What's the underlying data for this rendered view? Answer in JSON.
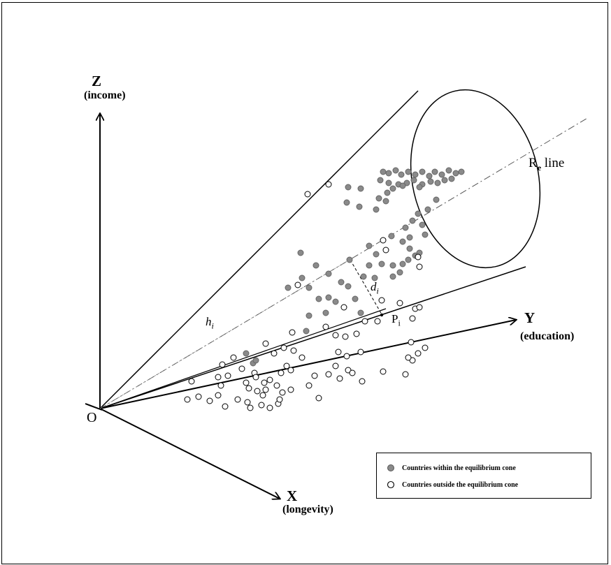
{
  "axes": {
    "z": {
      "letter": "Z",
      "label": "(income)"
    },
    "y": {
      "letter": "Y",
      "label": "(education)"
    },
    "x": {
      "letter": "X",
      "label": "(longevity)"
    },
    "origin": "O"
  },
  "annotations": {
    "re_line": "R",
    "re_line_sub": "e",
    "re_line_suffix": " line",
    "h": "h",
    "h_sub": "i",
    "d": "d",
    "d_sub": "i",
    "p": "P",
    "p_sub": "i"
  },
  "legend": {
    "inside_label": "Countries within the equilibrium cone",
    "outside_label": "Countries outside the equilibrium cone"
  },
  "colors": {
    "inside": "#8a8a8a",
    "outside": "#ffffff",
    "ink": "#000000"
  },
  "points_inside": [
    [
      548,
      246
    ],
    [
      556,
      248
    ],
    [
      566,
      244
    ],
    [
      574,
      250
    ],
    [
      584,
      246
    ],
    [
      594,
      250
    ],
    [
      604,
      246
    ],
    [
      614,
      252
    ],
    [
      622,
      246
    ],
    [
      632,
      250
    ],
    [
      642,
      244
    ],
    [
      652,
      248
    ],
    [
      660,
      246
    ],
    [
      544,
      258
    ],
    [
      556,
      262
    ],
    [
      570,
      264
    ],
    [
      582,
      262
    ],
    [
      592,
      258
    ],
    [
      604,
      264
    ],
    [
      616,
      260
    ],
    [
      626,
      262
    ],
    [
      636,
      258
    ],
    [
      646,
      256
    ],
    [
      554,
      276
    ],
    [
      562,
      270
    ],
    [
      576,
      266
    ],
    [
      600,
      268
    ],
    [
      498,
      268
    ],
    [
      516,
      270
    ],
    [
      496,
      290
    ],
    [
      514,
      296
    ],
    [
      542,
      284
    ],
    [
      552,
      288
    ],
    [
      538,
      300
    ],
    [
      624,
      286
    ],
    [
      612,
      300
    ],
    [
      598,
      306
    ],
    [
      590,
      316
    ],
    [
      580,
      326
    ],
    [
      604,
      322
    ],
    [
      586,
      340
    ],
    [
      608,
      336
    ],
    [
      560,
      338
    ],
    [
      576,
      346
    ],
    [
      586,
      356
    ],
    [
      594,
      366
    ],
    [
      600,
      362
    ],
    [
      584,
      372
    ],
    [
      576,
      378
    ],
    [
      572,
      390
    ],
    [
      562,
      380
    ],
    [
      430,
      362
    ],
    [
      452,
      380
    ],
    [
      470,
      392
    ],
    [
      500,
      372
    ],
    [
      528,
      352
    ],
    [
      538,
      364
    ],
    [
      546,
      378
    ],
    [
      562,
      396
    ],
    [
      528,
      380
    ],
    [
      536,
      398
    ],
    [
      520,
      396
    ],
    [
      498,
      410
    ],
    [
      488,
      404
    ],
    [
      412,
      412
    ],
    [
      432,
      398
    ],
    [
      442,
      412
    ],
    [
      456,
      428
    ],
    [
      466,
      448
    ],
    [
      470,
      426
    ],
    [
      508,
      428
    ],
    [
      438,
      474
    ],
    [
      480,
      432
    ],
    [
      516,
      448
    ],
    [
      442,
      452
    ],
    [
      352,
      506
    ],
    [
      362,
      520
    ],
    [
      366,
      516
    ]
  ],
  "points_outside": [
    [
      440,
      278
    ],
    [
      470,
      264
    ],
    [
      426,
      408
    ],
    [
      548,
      344
    ],
    [
      552,
      358
    ],
    [
      600,
      382
    ],
    [
      598,
      368
    ],
    [
      492,
      440
    ],
    [
      546,
      430
    ],
    [
      572,
      434
    ],
    [
      594,
      442
    ],
    [
      600,
      440
    ],
    [
      590,
      456
    ],
    [
      522,
      460
    ],
    [
      466,
      468
    ],
    [
      480,
      480
    ],
    [
      494,
      482
    ],
    [
      510,
      478
    ],
    [
      540,
      460
    ],
    [
      418,
      476
    ],
    [
      406,
      498
    ],
    [
      380,
      492
    ],
    [
      392,
      506
    ],
    [
      420,
      502
    ],
    [
      432,
      512
    ],
    [
      410,
      524
    ],
    [
      484,
      504
    ],
    [
      496,
      510
    ],
    [
      516,
      504
    ],
    [
      480,
      524
    ],
    [
      498,
      530
    ],
    [
      450,
      538
    ],
    [
      470,
      536
    ],
    [
      486,
      542
    ],
    [
      504,
      534
    ],
    [
      518,
      546
    ],
    [
      442,
      552
    ],
    [
      548,
      532
    ],
    [
      580,
      536
    ],
    [
      588,
      490
    ],
    [
      598,
      506
    ],
    [
      590,
      516
    ],
    [
      608,
      498
    ],
    [
      584,
      512
    ],
    [
      334,
      512
    ],
    [
      318,
      522
    ],
    [
      346,
      528
    ],
    [
      326,
      538
    ],
    [
      364,
      534
    ],
    [
      352,
      548
    ],
    [
      366,
      540
    ],
    [
      378,
      548
    ],
    [
      386,
      544
    ],
    [
      380,
      558
    ],
    [
      396,
      552
    ],
    [
      402,
      534
    ],
    [
      416,
      530
    ],
    [
      274,
      546
    ],
    [
      312,
      540
    ],
    [
      316,
      552
    ],
    [
      356,
      556
    ],
    [
      368,
      560
    ],
    [
      376,
      566
    ],
    [
      404,
      562
    ],
    [
      416,
      558
    ],
    [
      456,
      570
    ],
    [
      268,
      572
    ],
    [
      284,
      568
    ],
    [
      300,
      574
    ],
    [
      312,
      566
    ],
    [
      322,
      582
    ],
    [
      340,
      572
    ],
    [
      354,
      576
    ],
    [
      358,
      584
    ],
    [
      374,
      580
    ],
    [
      386,
      584
    ],
    [
      398,
      578
    ],
    [
      400,
      572
    ]
  ]
}
